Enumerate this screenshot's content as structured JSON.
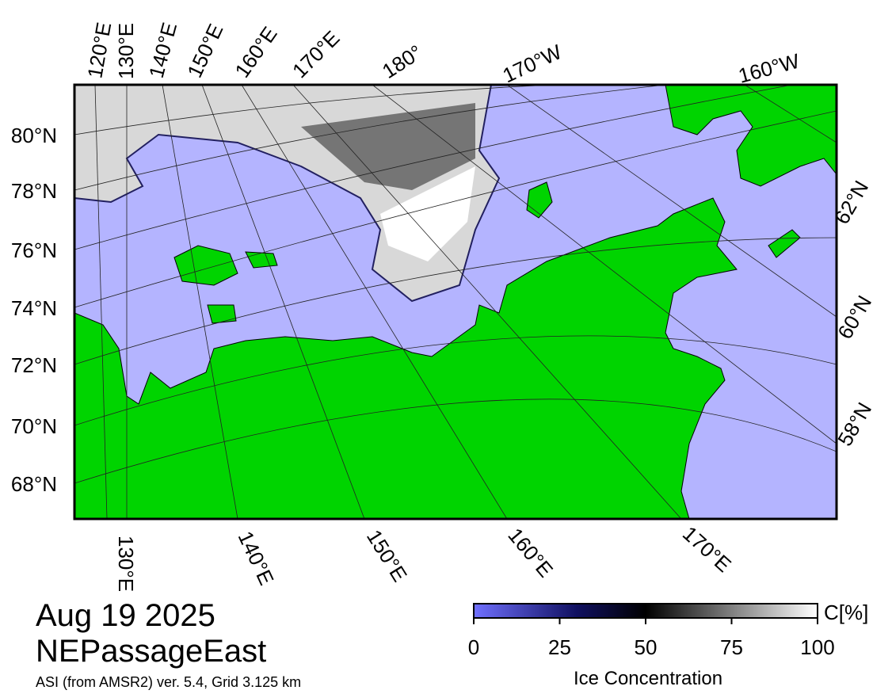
{
  "map": {
    "top_labels": [
      "120°E",
      "130°E",
      "140°E",
      "150°E",
      "160°E",
      "170°E",
      "180°",
      "170°W",
      "160°W"
    ],
    "left_labels": [
      "80°N",
      "78°N",
      "76°N",
      "74°N",
      "72°N",
      "70°N",
      "68°N"
    ],
    "right_labels": [
      "62°N",
      "60°N",
      "58°N"
    ],
    "bottom_labels": [
      "130°E",
      "140°E",
      "150°E",
      "160°E",
      "170°E"
    ]
  },
  "info": {
    "date": "Aug 19 2025",
    "region": "NEPassageEast",
    "source": "ASI (from AMSR2) ver. 5.4,  Grid 3.125 km"
  },
  "colorbar": {
    "ticks": [
      0,
      25,
      50,
      75,
      100
    ],
    "unit": "C[%]",
    "label": "Ice Concentration"
  }
}
